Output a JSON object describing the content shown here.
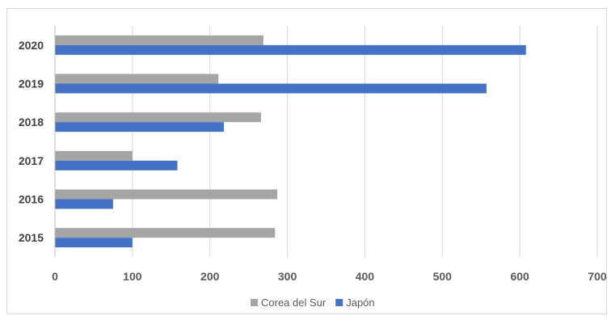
{
  "chart_data": {
    "type": "bar",
    "orientation": "horizontal",
    "title": "",
    "xlabel": "",
    "ylabel": "",
    "categories": [
      "2015",
      "2016",
      "2017",
      "2018",
      "2019",
      "2020"
    ],
    "series": [
      {
        "name": "Corea del Sur",
        "color": "#a5a5a5",
        "values": [
          284,
          287,
          100,
          266,
          211,
          269
        ]
      },
      {
        "name": "Japón",
        "color": "#4472c4",
        "values": [
          100,
          75,
          158,
          218,
          557,
          608
        ]
      }
    ],
    "xlim": [
      0,
      700
    ],
    "xticks": [
      "0",
      "100",
      "200",
      "300",
      "400",
      "500",
      "600",
      "700"
    ],
    "grid": "vertical",
    "legend": "bottom"
  }
}
